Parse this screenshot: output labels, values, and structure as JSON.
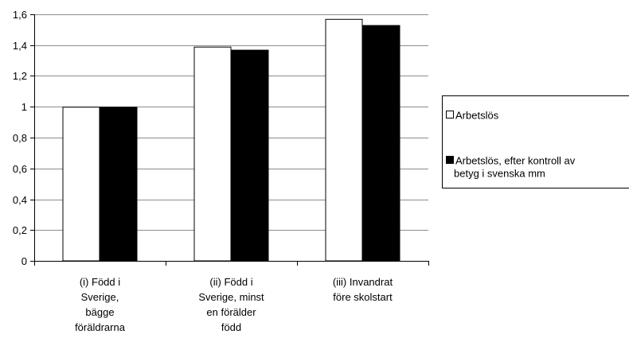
{
  "chart_data": {
    "type": "bar",
    "categories": [
      [
        "(i) Född i",
        "Sverige,",
        "bägge",
        "föräldrarna"
      ],
      [
        "(ii) Född i",
        "Sverige, minst",
        "en förälder",
        "född"
      ],
      [
        "(iii) Invandrat",
        "före skolstart"
      ]
    ],
    "series": [
      {
        "name": [
          "Arbetslös"
        ],
        "color": "#ffffff",
        "values": [
          1.0,
          1.39,
          1.57
        ]
      },
      {
        "name": [
          "Arbetslös, efter kontroll av",
          "betyg i svenska mm"
        ],
        "color": "#000000",
        "values": [
          1.0,
          1.37,
          1.53
        ]
      }
    ],
    "ylim": [
      0,
      1.6
    ],
    "yticks": [
      "0",
      "0,2",
      "0,4",
      "0,6",
      "0,8",
      "1",
      "1,2",
      "1,4",
      "1,6"
    ],
    "title": "",
    "xlabel": "",
    "ylabel": "",
    "grid": true,
    "legend_position": "right"
  }
}
